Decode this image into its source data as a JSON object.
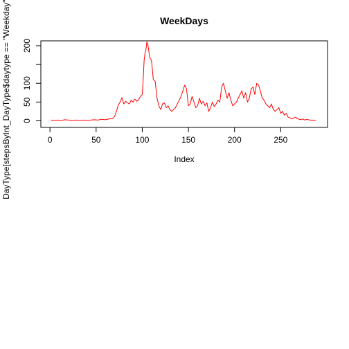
{
  "chart_data": {
    "type": "line",
    "title": "WeekDays",
    "xlabel": "Index",
    "ylabel": "DayType[stepsByInt_DayType$daytype == \"Weekday\", ]$steps",
    "xlim": [
      1,
      288
    ],
    "ylim": [
      0,
      210
    ],
    "xticks": [
      "0",
      "50",
      "100",
      "150",
      "200",
      "250"
    ],
    "yticks": [
      "0",
      "50",
      "100",
      "200"
    ],
    "grid": false,
    "legend": "none",
    "series": [
      {
        "color": "#ff0000",
        "x": [
          1,
          4,
          8,
          12,
          16,
          20,
          24,
          28,
          32,
          36,
          40,
          44,
          48,
          52,
          56,
          60,
          64,
          68,
          70,
          72,
          74,
          76,
          78,
          80,
          82,
          84,
          86,
          88,
          90,
          92,
          94,
          96,
          98,
          100,
          101,
          102,
          103,
          104,
          105,
          106,
          108,
          110,
          112,
          114,
          116,
          118,
          120,
          122,
          124,
          126,
          128,
          130,
          132,
          134,
          136,
          138,
          140,
          142,
          144,
          146,
          148,
          150,
          152,
          154,
          156,
          158,
          160,
          162,
          164,
          166,
          168,
          170,
          172,
          174,
          176,
          178,
          180,
          182,
          184,
          186,
          188,
          190,
          192,
          194,
          196,
          198,
          200,
          202,
          204,
          206,
          208,
          210,
          212,
          214,
          216,
          218,
          220,
          222,
          224,
          226,
          228,
          230,
          232,
          234,
          236,
          238,
          240,
          242,
          244,
          246,
          248,
          250,
          252,
          254,
          256,
          258,
          260,
          262,
          264,
          266,
          268,
          270,
          272,
          274,
          276,
          278,
          280,
          282,
          284,
          286,
          288
        ],
        "y": [
          2,
          1,
          2,
          1,
          3,
          2,
          1,
          2,
          1,
          2,
          1,
          2,
          3,
          2,
          4,
          3,
          5,
          6,
          12,
          25,
          42,
          50,
          62,
          45,
          52,
          48,
          45,
          55,
          50,
          58,
          52,
          56,
          65,
          70,
          110,
          160,
          180,
          190,
          210,
          205,
          170,
          160,
          110,
          105,
          60,
          40,
          30,
          45,
          48,
          35,
          40,
          30,
          25,
          30,
          35,
          45,
          55,
          65,
          80,
          95,
          85,
          40,
          45,
          65,
          50,
          35,
          40,
          60,
          45,
          52,
          40,
          48,
          25,
          35,
          50,
          38,
          45,
          55,
          50,
          90,
          100,
          80,
          60,
          75,
          55,
          40,
          45,
          50,
          60,
          70,
          80,
          60,
          75,
          50,
          60,
          85,
          90,
          70,
          100,
          95,
          80,
          60,
          55,
          45,
          40,
          35,
          45,
          30,
          25,
          30,
          35,
          20,
          25,
          15,
          20,
          10,
          8,
          5,
          7,
          10,
          6,
          4,
          3,
          5,
          2,
          4,
          3,
          2,
          1,
          2,
          1
        ]
      }
    ]
  }
}
